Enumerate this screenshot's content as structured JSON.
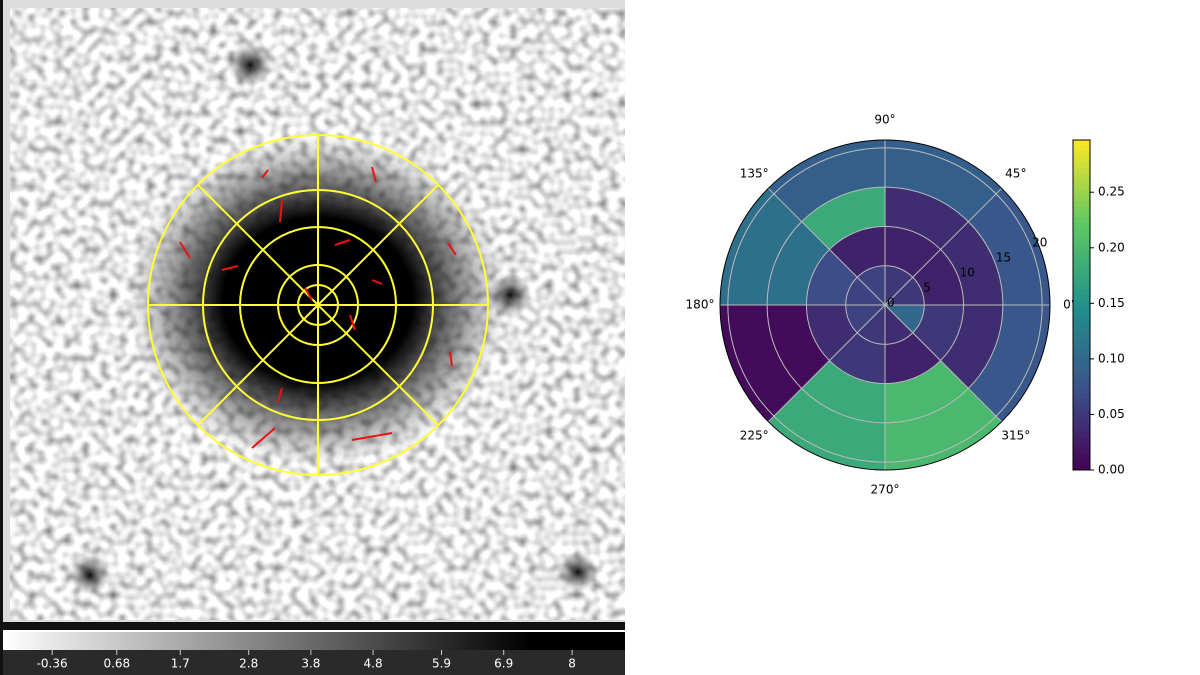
{
  "image": {
    "colorbar": {
      "lim": [
        -1.15,
        8.85
      ],
      "ticks": [
        -0.36,
        0.68,
        1.7,
        2.8,
        3.8,
        4.8,
        5.9,
        6.9,
        8
      ]
    }
  },
  "chart_data": {
    "type": "polar-heatmap",
    "cmap": "viridis",
    "theta_edges": [
      0,
      45,
      90,
      135,
      180,
      225,
      270,
      315,
      360
    ],
    "r_edges": [
      0,
      5,
      10,
      15,
      21
    ],
    "values": [
      [
        0.05,
        0.05,
        0.06,
        0.06,
        0.06,
        0.05,
        0.04,
        0.1
      ],
      [
        0.03,
        0.03,
        0.03,
        0.07,
        0.04,
        0.05,
        0.03,
        0.05
      ],
      [
        0.04,
        0.04,
        0.18,
        0.11,
        0.01,
        0.18,
        0.2,
        0.04
      ],
      [
        0.08,
        0.09,
        0.09,
        0.11,
        0.01,
        0.18,
        0.2,
        0.08
      ]
    ],
    "rlim": [
      0,
      21
    ],
    "rticks": [
      0,
      5,
      10,
      15,
      20
    ],
    "thetaticks": [
      {
        "value": 0,
        "label": "0°"
      },
      {
        "value": 45,
        "label": "45°"
      },
      {
        "value": 90,
        "label": "90°"
      },
      {
        "value": 135,
        "label": "135°"
      },
      {
        "value": 180,
        "label": "180°"
      },
      {
        "value": 225,
        "label": "225°"
      },
      {
        "value": 270,
        "label": "270°"
      },
      {
        "value": 315,
        "label": "315°"
      }
    ],
    "clim": [
      0,
      0.297
    ],
    "cticks": [
      {
        "value": 0,
        "label": "0.00"
      },
      {
        "value": 0.05,
        "label": "0.05"
      },
      {
        "value": 0.1,
        "label": "0.10"
      },
      {
        "value": 0.15,
        "label": "0.15"
      },
      {
        "value": 0.2,
        "label": "0.20"
      },
      {
        "value": 0.25,
        "label": "0.25"
      }
    ],
    "grid": true
  }
}
